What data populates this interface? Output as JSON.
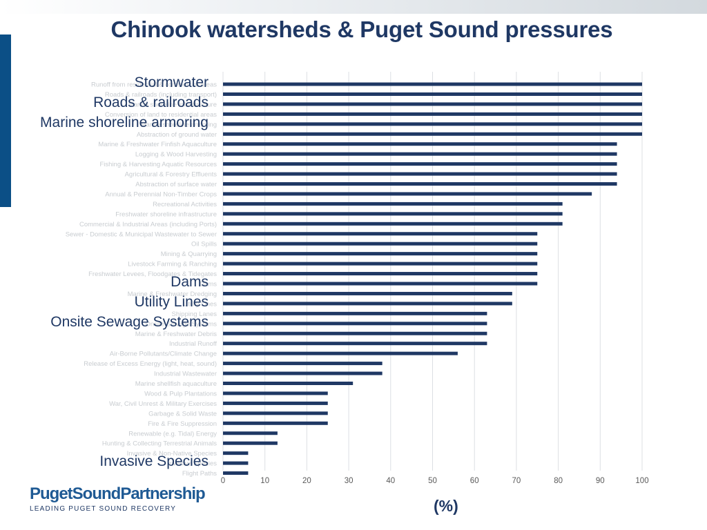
{
  "title": "Chinook watersheds & Puget Sound pressures",
  "callouts": [
    {
      "text": "Stormwater",
      "category_index": 0
    },
    {
      "text": "Roads & railroads",
      "category_index": 2
    },
    {
      "text": "Marine shoreline armoring",
      "category_index": 4
    },
    {
      "text": "Dams",
      "category_index": 20
    },
    {
      "text": "Utility Lines",
      "category_index": 22
    },
    {
      "text": "Onsite Sewage Systems",
      "category_index": 24
    },
    {
      "text": "Invasive Species",
      "category_index": 38
    }
  ],
  "x_unit_label": "(%)",
  "logo": {
    "name": "PugetSoundPartnership",
    "tagline": "LEADING PUGET SOUND RECOVERY"
  },
  "chart_data": {
    "type": "bar",
    "orientation": "horizontal",
    "categories": [
      "Runoff from residential & commercial areas",
      "Roads & railroads (including transport)",
      "Marine shoreline infrastructure",
      "Conversion of land to residential areas",
      "Marine shoreline armoring",
      "Abstraction of ground water",
      "Marine & Freshwater Finfish Aquaculture",
      "Logging & Wood Harvesting",
      "Fishing & Harvesting Aquatic Resources",
      "Agricultural & Forestry Effluents",
      "Abstraction of surface water",
      "Annual & Perennial Non-Timber Crops",
      "Recreational Activities",
      "Freshwater shoreline infrastructure",
      "Commercial & Industrial Areas (including Ports)",
      "Sewer - Domestic & Municipal Wastewater to Sewer",
      "Oil Spills",
      "Mining & Quarrying",
      "Livestock Farming & Ranching",
      "Freshwater Levees, Floodgates & Tidegates",
      "Dams",
      "Marine & Freshwater Dredging",
      "Utility Lines",
      "Shipping Lanes",
      "Onsite Sewage Systems",
      "Marine & Freshwater Debris",
      "Industrial Runoff",
      "Air-Borne Pollutants/Climate Change",
      "Release of Excess Energy (light, heat, sound)",
      "Industrial Wastewater",
      "Marine shellfish aquaculture",
      "Wood & Pulp Plantations",
      "War, Civil Unrest & Military Exercises",
      "Garbage & Solid Waste",
      "Fire & Fire Suppression",
      "Renewable (e.g. Tidal) Energy",
      "Hunting & Collecting Terrestrial Animals",
      "Invasive & Non-Native Species",
      "Invasive Species",
      "Flight Paths"
    ],
    "values": [
      100,
      100,
      100,
      100,
      100,
      100,
      94,
      94,
      94,
      94,
      94,
      88,
      81,
      81,
      81,
      75,
      75,
      75,
      75,
      75,
      75,
      69,
      69,
      63,
      63,
      63,
      63,
      56,
      38,
      38,
      31,
      25,
      25,
      25,
      25,
      13,
      13,
      6,
      6,
      6
    ],
    "xlim": [
      0,
      100
    ],
    "xticks": [
      0,
      10,
      20,
      30,
      40,
      50,
      60,
      70,
      80,
      90,
      100
    ],
    "xlabel": "(%)",
    "grid": true,
    "bar_color": "#1f3864"
  }
}
